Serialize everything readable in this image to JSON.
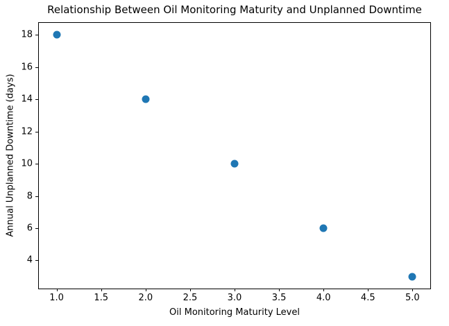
{
  "chart_data": {
    "type": "scatter",
    "title": "Relationship Between Oil Monitoring Maturity and Unplanned Downtime",
    "xlabel": "Oil Monitoring Maturity Level",
    "ylabel": "Annual Unplanned Downtime (days)",
    "x": [
      1,
      2,
      3,
      4,
      5
    ],
    "y": [
      18,
      14,
      10,
      6,
      3
    ],
    "xlim": [
      0.8,
      5.2
    ],
    "ylim": [
      2.25,
      18.75
    ],
    "xticks": [
      1.0,
      1.5,
      2.0,
      2.5,
      3.0,
      3.5,
      4.0,
      4.5,
      5.0
    ],
    "xtick_labels": [
      "1.0",
      "1.5",
      "2.0",
      "2.5",
      "3.0",
      "3.5",
      "4.0",
      "4.5",
      "5.0"
    ],
    "yticks": [
      4,
      6,
      8,
      10,
      12,
      14,
      16,
      18
    ],
    "ytick_labels": [
      "4",
      "6",
      "8",
      "10",
      "12",
      "14",
      "16",
      "18"
    ],
    "marker_color": "#1f77b4",
    "axis_color": "#000000",
    "background_color": "#ffffff",
    "grid": false,
    "legend": null
  }
}
